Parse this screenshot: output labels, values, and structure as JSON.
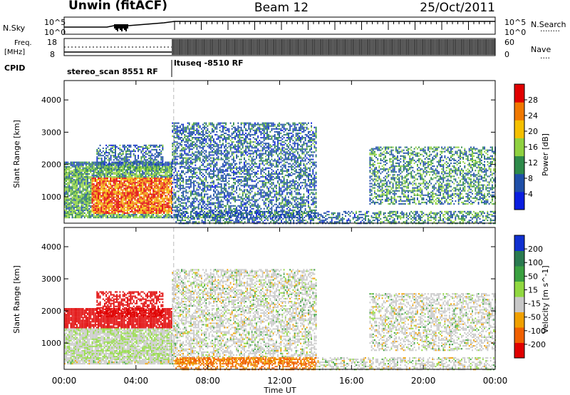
{
  "header": {
    "title_left": "Unwin (fitACF)",
    "title_center": "Beam 12",
    "title_right": "25/Oct/2011"
  },
  "noise_panel": {
    "left_label": "N.Sky",
    "right_label": "N.Search",
    "left_ticks": [
      "10^5",
      "10^0"
    ],
    "right_ticks": [
      "10^5",
      "10^0"
    ]
  },
  "freq_panel": {
    "left_label_top": "Freq.",
    "left_label_units": "[MHz]",
    "right_label": "Nave",
    "left_ticks": [
      "18",
      "8"
    ],
    "right_ticks": [
      "60",
      "0"
    ],
    "cpid_label": "CPID",
    "cpid_segments": [
      {
        "label": "stereo_scan 8551 RF",
        "start_hour": 0,
        "end_hour": 6.1
      },
      {
        "label": "ltuseq -8510 RF",
        "start_hour": 6.1,
        "end_hour": 24
      }
    ]
  },
  "chart_data": [
    {
      "type": "heatmap",
      "name": "power",
      "ylabel": "Slant Range [km]",
      "yticks": [
        "1000",
        "2000",
        "3000",
        "4000"
      ],
      "ylim": [
        180,
        4600
      ],
      "xlim": [
        0,
        24
      ],
      "colorbar": {
        "label": "Power [dB]",
        "ticks": [
          "4",
          "8",
          "12",
          "16",
          "20",
          "24",
          "28"
        ],
        "range": [
          0,
          30
        ],
        "colors": [
          "#0a1ee0",
          "#1f4fa8",
          "#2e8a4a",
          "#8fd140",
          "#f5c000",
          "#f07800",
          "#e10000"
        ]
      }
    },
    {
      "type": "heatmap",
      "name": "velocity",
      "ylabel": "Slant Range [km]",
      "yticks": [
        "1000",
        "2000",
        "3000",
        "4000"
      ],
      "ylim": [
        180,
        4600
      ],
      "xlim": [
        0,
        24
      ],
      "xlabel": "Time UT",
      "xticks": [
        "00:00",
        "04:00",
        "08:00",
        "12:00",
        "16:00",
        "20:00",
        "00:00"
      ],
      "colorbar": {
        "label": "Velocity [m s^-1]",
        "ticks": [
          "200",
          "100",
          "50",
          "15",
          "-15",
          "-50",
          "-100",
          "-200"
        ],
        "colors": [
          "#1030d0",
          "#2a7a50",
          "#3aa040",
          "#90d840",
          "#c8c8c8",
          "#f0a000",
          "#f06000",
          "#e00000"
        ]
      }
    }
  ]
}
